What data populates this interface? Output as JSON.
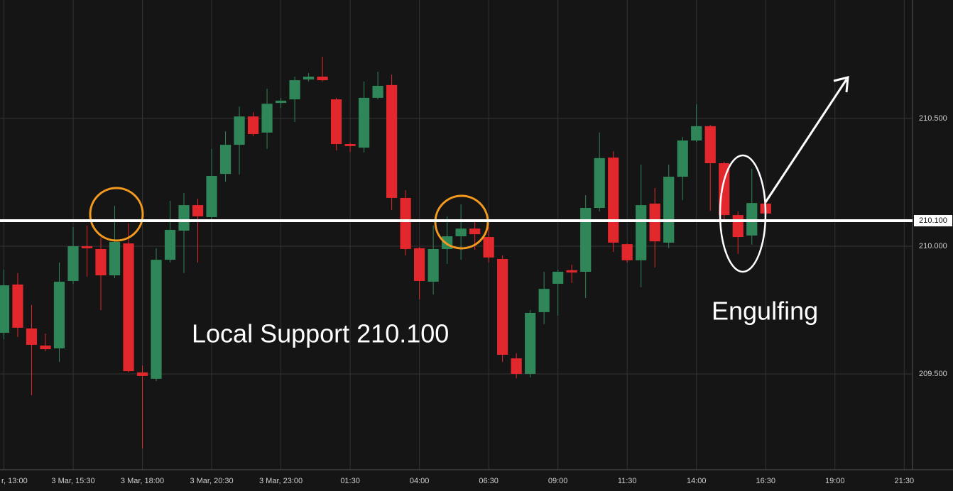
{
  "chart_data": {
    "type": "candlestick",
    "open": [
      209.661,
      209.85,
      209.678,
      209.611,
      209.6,
      209.864,
      210.0,
      209.989,
      209.886,
      210.011,
      209.506,
      209.481,
      209.947,
      210.061,
      210.161,
      210.114,
      210.283,
      210.397,
      210.508,
      210.445,
      210.561,
      210.575,
      210.653,
      210.664,
      210.575,
      210.4,
      210.386,
      210.581,
      210.631,
      210.189,
      209.992,
      209.861,
      209.989,
      210.039,
      210.069,
      210.036,
      209.95,
      209.561,
      209.5,
      209.742,
      209.853,
      209.906,
      209.9,
      210.15,
      210.347,
      210.008,
      209.945,
      210.167,
      210.014,
      210.272,
      210.414,
      210.47,
      210.325,
      210.122,
      210.042,
      210.167
    ],
    "high": [
      209.908,
      209.895,
      209.77,
      209.658,
      209.936,
      210.075,
      210.081,
      210.033,
      210.158,
      210.089,
      209.533,
      209.992,
      210.178,
      210.208,
      210.186,
      210.381,
      210.45,
      210.547,
      210.525,
      210.617,
      210.581,
      210.664,
      210.678,
      210.742,
      210.581,
      210.406,
      210.645,
      210.683,
      210.672,
      210.219,
      209.997,
      210.081,
      210.117,
      210.164,
      210.103,
      210.075,
      209.964,
      209.581,
      209.75,
      209.9,
      209.908,
      209.928,
      210.2,
      210.445,
      210.372,
      210.011,
      210.32,
      210.228,
      210.32,
      210.428,
      210.556,
      210.475,
      210.331,
      210.136,
      210.303,
      210.175
    ],
    "low": [
      209.636,
      209.645,
      209.417,
      209.589,
      209.547,
      209.853,
      209.881,
      209.75,
      209.875,
      209.506,
      209.208,
      209.472,
      209.936,
      209.895,
      209.936,
      210.097,
      210.253,
      210.281,
      210.431,
      210.381,
      210.542,
      210.486,
      210.645,
      210.645,
      210.375,
      210.369,
      210.367,
      210.575,
      210.142,
      209.964,
      209.792,
      209.811,
      209.931,
      209.947,
      209.986,
      209.936,
      209.547,
      209.483,
      209.486,
      209.695,
      209.728,
      209.856,
      209.797,
      210.136,
      209.978,
      209.936,
      209.839,
      209.917,
      209.992,
      210.181,
      210.408,
      210.139,
      210.103,
      209.97,
      210.006,
      210.122
    ],
    "close": [
      209.847,
      209.681,
      209.614,
      209.597,
      209.861,
      210.0,
      209.992,
      209.886,
      210.017,
      209.511,
      209.492,
      209.947,
      210.064,
      210.161,
      210.117,
      210.275,
      210.397,
      210.508,
      210.439,
      210.558,
      210.57,
      210.65,
      210.664,
      210.65,
      210.4,
      210.392,
      210.581,
      210.628,
      210.189,
      209.989,
      209.864,
      209.989,
      210.039,
      210.069,
      210.047,
      209.956,
      209.575,
      209.5,
      209.739,
      209.833,
      209.9,
      209.897,
      210.15,
      210.345,
      210.014,
      209.945,
      210.161,
      210.019,
      210.272,
      210.414,
      210.47,
      210.325,
      210.122,
      210.036,
      210.169,
      210.128
    ],
    "up_color": "#2f8759",
    "down_color": "#e3282d",
    "xlim": [
      -0.28,
      65.6
    ],
    "xticks": [
      {
        "value": 0,
        "label": "r, 13:00"
      },
      {
        "value": 5,
        "label": "3 Mar, 15:30"
      },
      {
        "value": 10,
        "label": "3 Mar, 18:00"
      },
      {
        "value": 15,
        "label": "3 Mar, 20:30"
      },
      {
        "value": 20,
        "label": "3 Mar, 23:00"
      },
      {
        "value": 25,
        "label": "01:30"
      },
      {
        "value": 30,
        "label": "04:00"
      },
      {
        "value": 35,
        "label": "06:30"
      },
      {
        "value": 40,
        "label": "09:00"
      },
      {
        "value": 45,
        "label": "11:30"
      },
      {
        "value": 50,
        "label": "14:00"
      },
      {
        "value": 55,
        "label": "16:30"
      },
      {
        "value": 60,
        "label": "19:00"
      },
      {
        "value": 65,
        "label": "21:30"
      }
    ],
    "ylim": [
      209.125,
      210.964
    ],
    "yticks": [
      {
        "value": 209.5,
        "label": "209.500"
      },
      {
        "value": 210,
        "label": "210.000"
      },
      {
        "value": 210.5,
        "label": "210.500"
      }
    ],
    "grid": true,
    "support_line": {
      "value": 210.1,
      "label": "210.100"
    },
    "annotations": [
      "Local Support 210.100",
      "Engulfing"
    ]
  }
}
